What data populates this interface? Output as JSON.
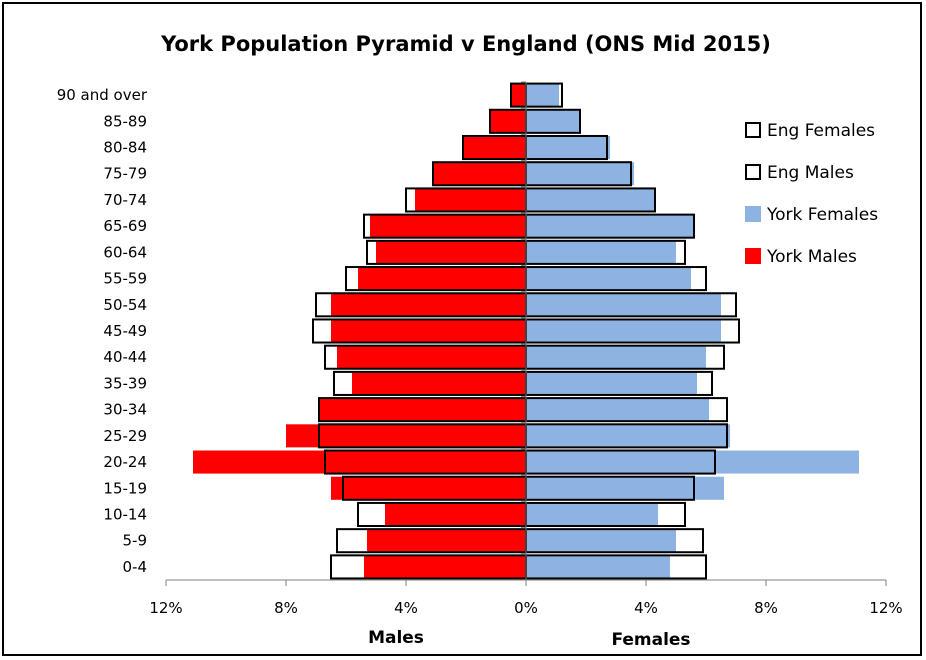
{
  "chart_data": {
    "type": "bar",
    "orientation": "horizontal",
    "title": "York Population Pyramid v England (ONS Mid 2015)",
    "xlabel_left": "Males",
    "xlabel_right": "Females",
    "x_ticks": [
      "12%",
      "8%",
      "4%",
      "0%",
      "4%",
      "8%",
      "12%"
    ],
    "xlim": [
      -12,
      12
    ],
    "categories": [
      "0-4",
      "5-9",
      "10-14",
      "15-19",
      "20-24",
      "25-29",
      "30-34",
      "35-39",
      "40-44",
      "45-49",
      "50-54",
      "55-59",
      "60-64",
      "65-69",
      "70-74",
      "75-79",
      "80-84",
      "85-89",
      "90 and over"
    ],
    "series": [
      {
        "name": "York Males",
        "color": "#ff0000",
        "style": "fill",
        "side": "left",
        "values": [
          5.4,
          5.3,
          4.7,
          6.5,
          11.1,
          8.0,
          6.9,
          5.8,
          6.3,
          6.5,
          6.5,
          5.6,
          5.0,
          5.2,
          3.7,
          3.1,
          2.1,
          1.2,
          0.5
        ]
      },
      {
        "name": "York Females",
        "color": "#8db3e2",
        "style": "fill",
        "side": "right",
        "values": [
          4.8,
          5.0,
          4.4,
          6.6,
          11.1,
          6.8,
          6.1,
          5.7,
          6.0,
          6.5,
          6.5,
          5.5,
          5.0,
          5.6,
          4.3,
          3.6,
          2.8,
          1.8,
          1.1
        ]
      },
      {
        "name": "Eng Males",
        "color": "#000000",
        "style": "outline",
        "side": "left",
        "values": [
          6.5,
          6.3,
          5.6,
          6.1,
          6.7,
          6.9,
          6.9,
          6.4,
          6.7,
          7.1,
          7.0,
          6.0,
          5.3,
          5.4,
          4.0,
          3.1,
          2.1,
          1.2,
          0.5
        ]
      },
      {
        "name": "Eng Females",
        "color": "#000000",
        "style": "outline",
        "side": "right",
        "values": [
          6.0,
          5.9,
          5.3,
          5.6,
          6.3,
          6.7,
          6.7,
          6.2,
          6.6,
          7.1,
          7.0,
          6.0,
          5.3,
          5.6,
          4.3,
          3.5,
          2.7,
          1.8,
          1.2
        ]
      }
    ],
    "legend": {
      "placement": "right",
      "items": [
        {
          "label": "Eng Females",
          "style": "outline",
          "color": "#000000"
        },
        {
          "label": "Eng Males",
          "style": "outline",
          "color": "#000000"
        },
        {
          "label": "York Females",
          "style": "fill",
          "color": "#8db3e2"
        },
        {
          "label": "York Males",
          "style": "fill",
          "color": "#ff0000"
        }
      ]
    }
  }
}
